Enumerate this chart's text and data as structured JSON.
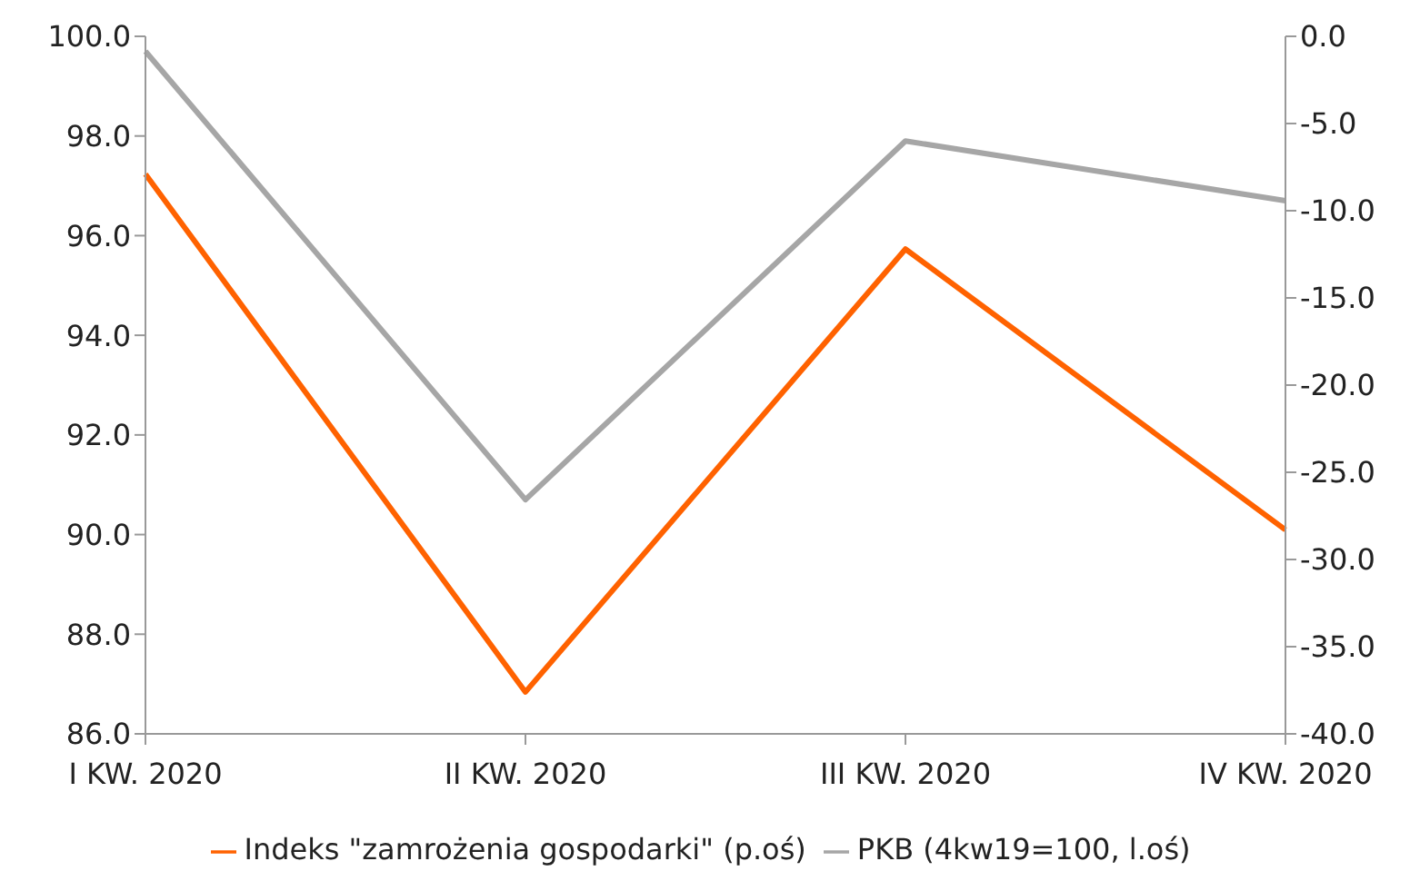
{
  "chart_data": {
    "type": "line",
    "categories": [
      "I KW. 2020",
      "II KW. 2020",
      "III KW. 2020",
      "IV KW. 2020"
    ],
    "series": [
      {
        "name": "PKB (4kw19=100, l.oś)",
        "color": "#a6a6a6",
        "values": [
          99.7,
          90.7,
          97.9,
          96.7
        ]
      },
      {
        "name": "Indeks \"zamrożenia gospodarki\" (p.oś)",
        "color": "#ff6200",
        "values": [
          -7.9,
          -37.6,
          -12.2,
          -28.3
        ],
        "axis": "y2"
      }
    ],
    "ylim": [
      86,
      100
    ],
    "yticks": [
      {
        "value": 86,
        "label": "86.0"
      },
      {
        "value": 88,
        "label": "88.0"
      },
      {
        "value": 90,
        "label": "90.0"
      },
      {
        "value": 92,
        "label": "92.0"
      },
      {
        "value": 94,
        "label": "94.0"
      },
      {
        "value": 96,
        "label": "96.0"
      },
      {
        "value": 98,
        "label": "98.0"
      },
      {
        "value": 100,
        "label": "100.0"
      }
    ],
    "y2lim": [
      -40,
      0
    ],
    "y2ticks": [
      {
        "value": -40,
        "label": "-40.0"
      },
      {
        "value": -35,
        "label": "-35.0"
      },
      {
        "value": -30,
        "label": "-30.0"
      },
      {
        "value": -25,
        "label": "-25.0"
      },
      {
        "value": -20,
        "label": "-20.0"
      },
      {
        "value": -15,
        "label": "-15.0"
      },
      {
        "value": -10,
        "label": "-10.0"
      },
      {
        "value": -5,
        "label": "-5.0"
      },
      {
        "value": 0,
        "label": "0.0"
      }
    ],
    "grid": false,
    "legend": "bottom",
    "marker": "none",
    "line_style": "solid"
  }
}
